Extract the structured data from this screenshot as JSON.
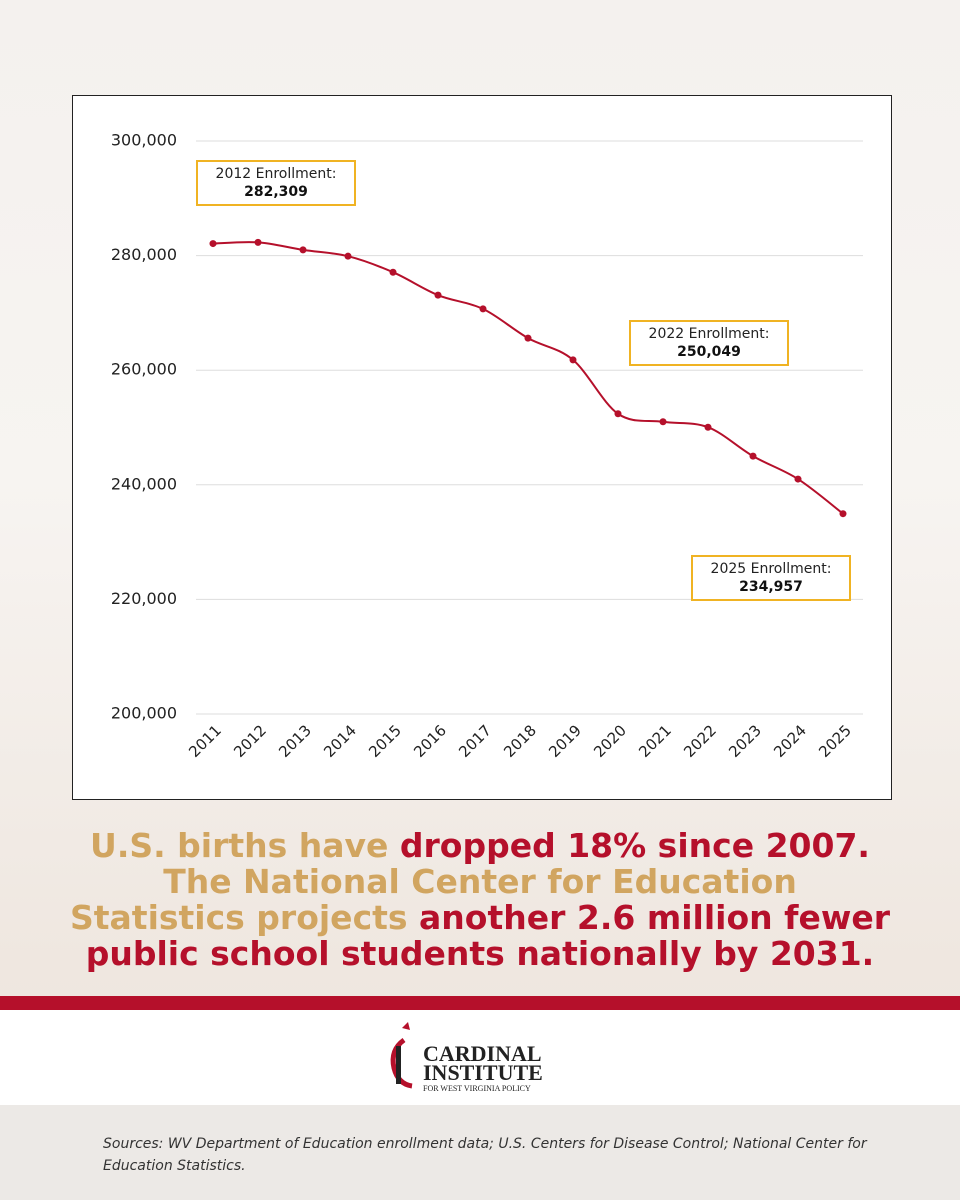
{
  "chart_data": {
    "type": "line",
    "categories": [
      "2011",
      "2012",
      "2013",
      "2014",
      "2015",
      "2016",
      "2017",
      "2018",
      "2019",
      "2020",
      "2021",
      "2022",
      "2023",
      "2024",
      "2025"
    ],
    "series": [
      {
        "name": "Enrollment",
        "color": "#b5102b",
        "values": [
          282100,
          282309,
          281000,
          279900,
          277100,
          273100,
          270700,
          265600,
          261800,
          252400,
          251000,
          250049,
          245000,
          241000,
          234957
        ]
      }
    ],
    "ylim": [
      200000,
      300000
    ],
    "yticks": [
      {
        "value": 200000,
        "label": "200,000"
      },
      {
        "value": 220000,
        "label": "220,000"
      },
      {
        "value": 240000,
        "label": "240,000"
      },
      {
        "value": 260000,
        "label": "260,000"
      },
      {
        "value": 280000,
        "label": "280,000"
      },
      {
        "value": 300000,
        "label": "300,000"
      }
    ],
    "grid": true,
    "annotations": [
      {
        "text": "2012 Enrollment:",
        "value_label": "282,309"
      },
      {
        "text": "2022 Enrollment:",
        "value_label": "250,049"
      },
      {
        "text": "2025 Enrollment:",
        "value_label": "234,957"
      }
    ]
  },
  "headline": [
    [
      {
        "text": "U.S. births have ",
        "highlight": false
      },
      {
        "text": "dropped 18% since 2007.",
        "highlight": true
      }
    ],
    [
      {
        "text": "The National Center for Education",
        "highlight": false
      }
    ],
    [
      {
        "text": "Statistics projects ",
        "highlight": false
      },
      {
        "text": "another 2.6 million fewer",
        "highlight": true
      }
    ],
    [
      {
        "text": "public school students nationally by 2031.",
        "highlight": true
      }
    ]
  ],
  "logo": {
    "line1": "CARDINAL",
    "line2": "INSTITUTE",
    "tagline": "FOR WEST VIRGINIA POLICY"
  },
  "sources": "Sources: WV Department of Education enrollment data; U.S. Centers for Disease Control; National Center for Education Statistics."
}
